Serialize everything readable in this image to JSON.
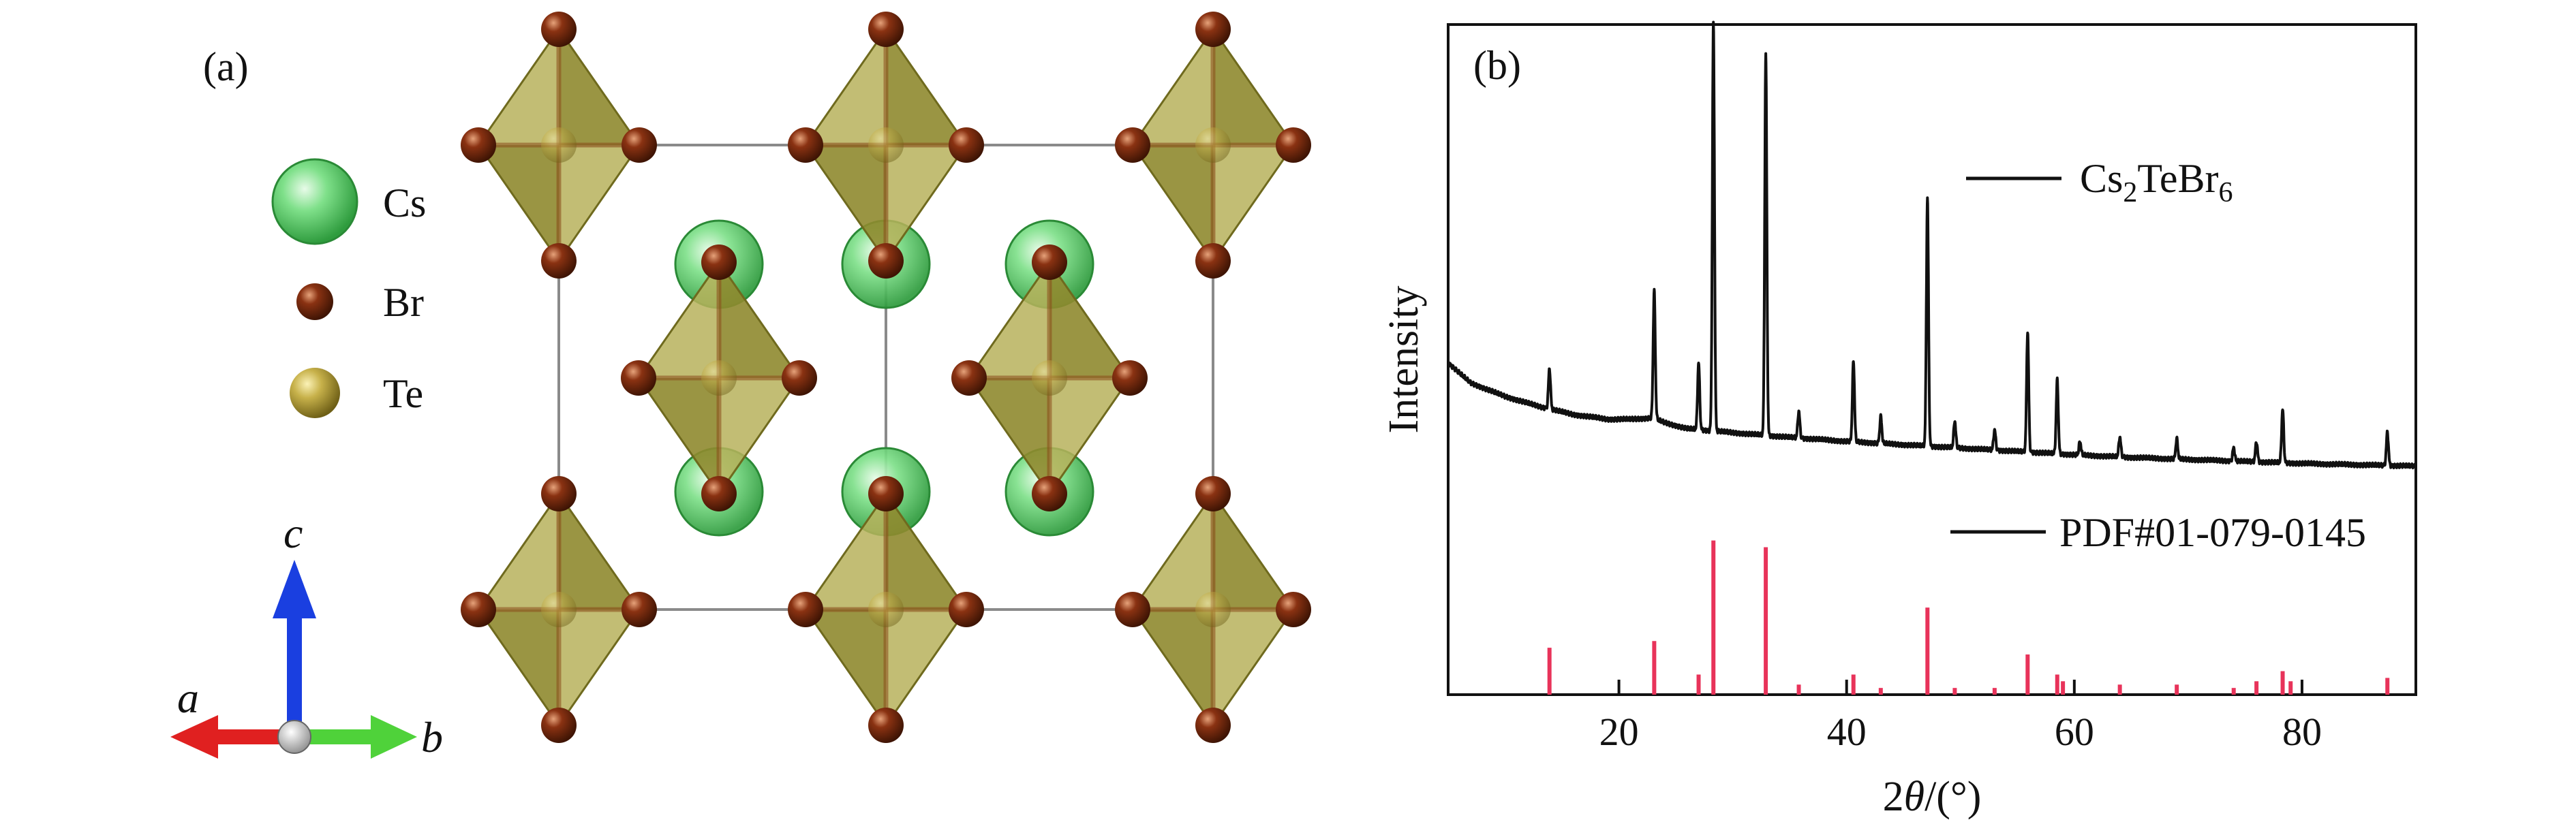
{
  "panel_a": {
    "label": "(a)",
    "legend": [
      {
        "element": "Cs",
        "color": "#58d66a"
      },
      {
        "element": "Br",
        "color": "#7a2c10"
      },
      {
        "element": "Te",
        "color": "#b5a23c"
      }
    ],
    "axes": {
      "a": "a",
      "b": "b",
      "c": "c"
    },
    "colors": {
      "octahedron": "#8f8a2f",
      "octahedron_light": "#b7b25c",
      "arrow_a": "#e02020",
      "arrow_b": "#4fd23a",
      "arrow_c": "#1a3fe0"
    }
  },
  "panel_b": {
    "label": "(b)",
    "legend_sample": "Cs2TeBr6",
    "legend_reference": "PDF#01-079-0145",
    "colors": {
      "pattern": "#111111",
      "reference": "#e8335a"
    }
  },
  "chart_data": {
    "type": "line",
    "title": "",
    "xlabel_prefix": "2",
    "xlabel_var": "θ",
    "xlabel_suffix": "/(°)",
    "ylabel": "Intensity",
    "xlim": [
      5,
      90
    ],
    "ylim": [
      0,
      100
    ],
    "xticks": [
      20,
      40,
      60,
      80
    ],
    "yticks_shown": false,
    "series": [
      {
        "name": "Cs2TeBr6",
        "kind": "xrd-pattern",
        "baseline": [
          [
            5,
            49.5
          ],
          [
            7,
            46.5
          ],
          [
            10,
            44.5
          ],
          [
            13,
            43
          ],
          [
            16,
            41.8
          ],
          [
            19,
            41.1
          ],
          [
            21,
            41.1
          ],
          [
            23,
            41.3
          ],
          [
            24,
            40.6
          ],
          [
            26,
            39.7
          ],
          [
            30,
            39.1
          ],
          [
            35,
            38.4
          ],
          [
            40,
            37.8
          ],
          [
            45,
            37.3
          ],
          [
            50,
            36.8
          ],
          [
            55,
            36.3
          ],
          [
            60,
            35.8
          ],
          [
            65,
            35.4
          ],
          [
            70,
            35.1
          ],
          [
            75,
            34.8
          ],
          [
            80,
            34.5
          ],
          [
            85,
            34.3
          ],
          [
            90,
            34.1
          ]
        ],
        "peaks": [
          [
            13.9,
            6
          ],
          [
            23.1,
            19
          ],
          [
            27.0,
            10
          ],
          [
            28.3,
            61
          ],
          [
            32.9,
            57
          ],
          [
            35.8,
            4
          ],
          [
            40.6,
            12
          ],
          [
            43.0,
            4
          ],
          [
            47.1,
            37
          ],
          [
            49.5,
            4
          ],
          [
            53.0,
            3
          ],
          [
            55.9,
            18
          ],
          [
            58.5,
            11
          ],
          [
            60.5,
            2
          ],
          [
            64.0,
            3
          ],
          [
            69.0,
            3
          ],
          [
            74.0,
            2
          ],
          [
            76.0,
            3
          ],
          [
            78.3,
            8
          ],
          [
            87.5,
            5
          ]
        ]
      },
      {
        "name": "PDF#01-079-0145",
        "kind": "reference-sticks",
        "sticks": [
          [
            13.9,
            7
          ],
          [
            23.1,
            8
          ],
          [
            27.0,
            3
          ],
          [
            28.3,
            23
          ],
          [
            32.9,
            22
          ],
          [
            35.8,
            1.5
          ],
          [
            40.6,
            3
          ],
          [
            43.0,
            1
          ],
          [
            47.1,
            13
          ],
          [
            49.5,
            1
          ],
          [
            53.0,
            1
          ],
          [
            55.9,
            6
          ],
          [
            58.5,
            3
          ],
          [
            59.0,
            2
          ],
          [
            64.0,
            1.5
          ],
          [
            69.0,
            1.5
          ],
          [
            74.0,
            1
          ],
          [
            76.0,
            2
          ],
          [
            78.3,
            3.5
          ],
          [
            79.0,
            2
          ],
          [
            87.5,
            2.5
          ]
        ]
      }
    ],
    "legend_position": "top-right"
  }
}
